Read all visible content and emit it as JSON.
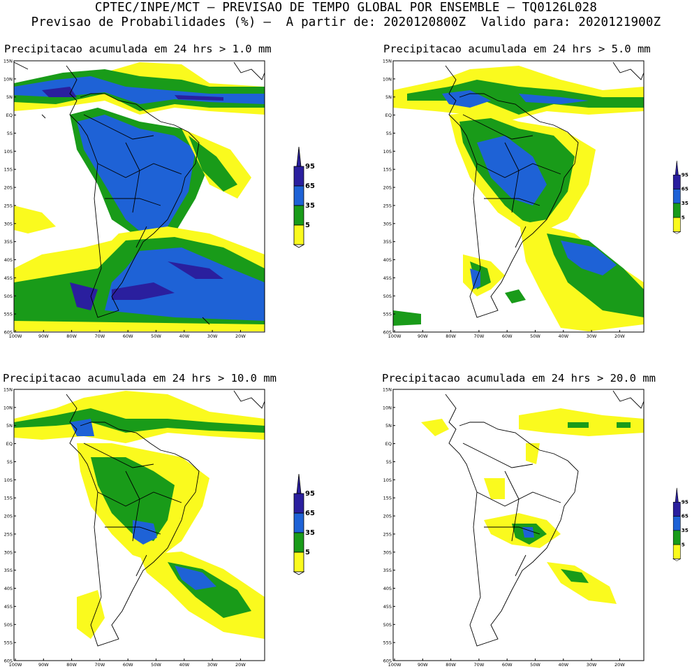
{
  "header": {
    "line1": "CPTEC/INPE/MCT – PREVISAO DE TEMPO GLOBAL POR ENSEMBLE – TQ0126L028",
    "line2": "Previsao de Probabilidades (%) –  A partir de: 2020120800Z  Valido para: 2020121900Z"
  },
  "panels": [
    {
      "id": "p1",
      "title": "Precipitacao acumulada em 24 hrs > 1.0 mm"
    },
    {
      "id": "p2",
      "title": "Precipitacao acumulada em 24 hrs > 5.0 mm"
    },
    {
      "id": "p3",
      "title": "Precipitacao acumulada em 24 hrs > 10.0 mm"
    },
    {
      "id": "p4",
      "title": "Precipitacao acumulada em 24 hrs > 20.0 mm"
    }
  ],
  "axes": {
    "lat_labels": [
      "15N",
      "10N",
      "5N",
      "EQ",
      "5S",
      "10S",
      "15S",
      "20S",
      "25S",
      "30S",
      "35S",
      "40S",
      "45S",
      "50S",
      "55S",
      "60S"
    ],
    "lon_labels": [
      "100W",
      "90W",
      "80W",
      "70W",
      "60W",
      "50W",
      "40W",
      "30W",
      "20W"
    ]
  },
  "legend": {
    "levels": [
      "95",
      "65",
      "35",
      "5"
    ],
    "colors": {
      "c95": "#2a1f9e",
      "c65": "#1e62d6",
      "c35": "#199b19",
      "c5": "#fafa1e"
    }
  }
}
